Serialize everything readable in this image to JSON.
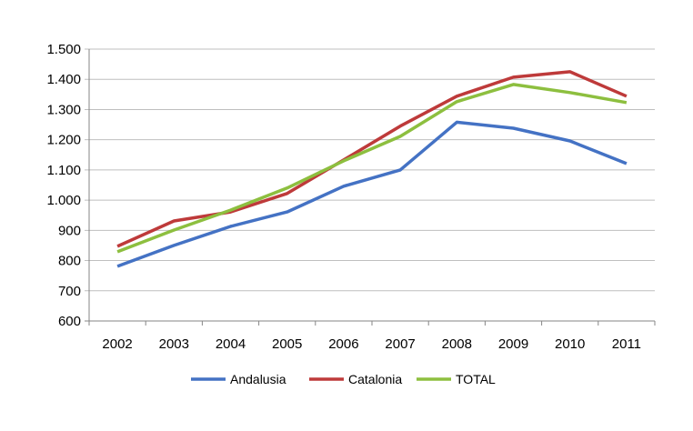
{
  "chart_data": {
    "type": "line",
    "title": "",
    "xlabel": "",
    "ylabel": "",
    "categories": [
      "2002",
      "2003",
      "2004",
      "2005",
      "2006",
      "2007",
      "2008",
      "2009",
      "2010",
      "2011"
    ],
    "ylim": [
      600,
      1500
    ],
    "yticks": [
      600,
      700,
      800,
      900,
      1000,
      1100,
      1200,
      1300,
      1400,
      1500
    ],
    "ytick_labels": [
      "600",
      "700",
      "800",
      "900",
      "1.000",
      "1.100",
      "1.200",
      "1.300",
      "1.400",
      "1.500"
    ],
    "grid": true,
    "legend": "bottom",
    "series": [
      {
        "name": "Andalusia",
        "color": "#4472C4",
        "values": [
          781,
          850,
          913,
          961,
          1046,
          1100,
          1258,
          1238,
          1196,
          1121
        ]
      },
      {
        "name": "Catalonia",
        "color": "#BE3A3A",
        "values": [
          847,
          931,
          961,
          1022,
          1133,
          1245,
          1344,
          1407,
          1425,
          1344
        ]
      },
      {
        "name": "TOTAL",
        "color": "#8DBF3F",
        "values": [
          829,
          901,
          967,
          1040,
          1130,
          1211,
          1326,
          1383,
          1356,
          1323
        ]
      }
    ]
  }
}
